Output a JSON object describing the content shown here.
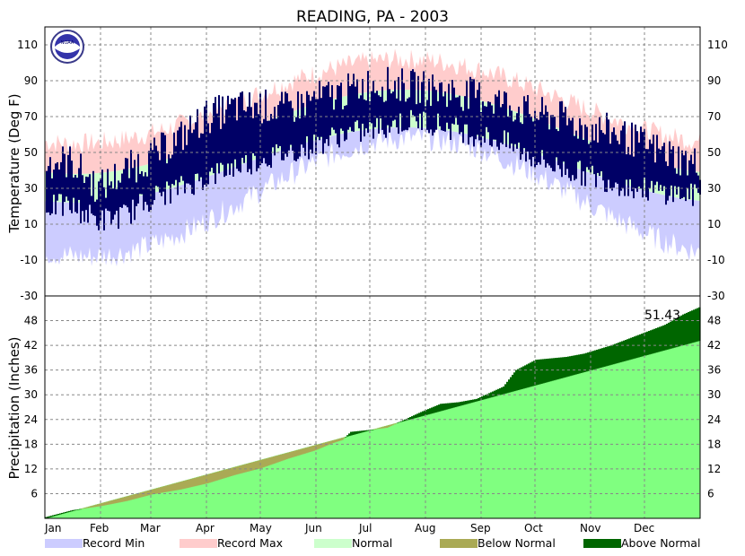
{
  "chart_data": {
    "type": "area",
    "title": "READING, PA - 2003",
    "months": [
      "Jan",
      "Feb",
      "Mar",
      "Apr",
      "May",
      "Jun",
      "Jul",
      "Aug",
      "Sep",
      "Oct",
      "Nov",
      "Dec"
    ],
    "temperature": {
      "ylabel": "Temperature (Deg F)",
      "ylim": [
        -30,
        120
      ],
      "ticks": [
        -30,
        -10,
        10,
        30,
        50,
        70,
        90,
        110
      ],
      "grid": true,
      "record_max": {
        "min": 55,
        "max": 102,
        "peak_day": 200
      },
      "record_min": {
        "min": -8,
        "max": 58,
        "low_day": 25,
        "peak_day": 205
      },
      "normal_high": {
        "min": 38,
        "max": 85
      },
      "normal_low": {
        "min": 22,
        "max": 64
      },
      "observed_highs": [
        [
          15,
          45
        ],
        [
          30,
          30
        ],
        [
          45,
          40
        ],
        [
          60,
          48
        ],
        [
          75,
          58
        ],
        [
          90,
          70
        ],
        [
          105,
          75
        ],
        [
          120,
          76
        ],
        [
          135,
          74
        ],
        [
          150,
          80
        ],
        [
          165,
          83
        ],
        [
          180,
          88
        ],
        [
          195,
          88
        ],
        [
          210,
          86
        ],
        [
          225,
          84
        ],
        [
          240,
          82
        ],
        [
          255,
          78
        ],
        [
          270,
          72
        ],
        [
          285,
          70
        ],
        [
          300,
          64
        ],
        [
          315,
          62
        ],
        [
          330,
          56
        ],
        [
          345,
          50
        ],
        [
          360,
          44
        ]
      ],
      "observed_lows": [
        [
          15,
          20
        ],
        [
          30,
          12
        ],
        [
          45,
          15
        ],
        [
          60,
          25
        ],
        [
          75,
          30
        ],
        [
          90,
          36
        ],
        [
          105,
          42
        ],
        [
          120,
          46
        ],
        [
          135,
          50
        ],
        [
          150,
          54
        ],
        [
          165,
          60
        ],
        [
          180,
          62
        ],
        [
          195,
          66
        ],
        [
          210,
          68
        ],
        [
          225,
          64
        ],
        [
          240,
          60
        ],
        [
          255,
          56
        ],
        [
          270,
          48
        ],
        [
          285,
          42
        ],
        [
          300,
          38
        ],
        [
          315,
          34
        ],
        [
          330,
          30
        ],
        [
          345,
          28
        ],
        [
          360,
          26
        ]
      ]
    },
    "precipitation": {
      "ylabel": "Precipitation (Inches)",
      "ylim": [
        0,
        54
      ],
      "ticks": [
        6,
        12,
        18,
        24,
        30,
        36,
        42,
        48
      ],
      "grid": true,
      "annual_total_label": "51.43",
      "normal_total": 43.2,
      "observed_cumulative": [
        [
          0,
          0.3
        ],
        [
          15,
          2.0
        ],
        [
          31,
          3.0
        ],
        [
          45,
          4.2
        ],
        [
          59,
          5.8
        ],
        [
          75,
          7.0
        ],
        [
          90,
          8.5
        ],
        [
          105,
          10.5
        ],
        [
          120,
          12.2
        ],
        [
          135,
          14.5
        ],
        [
          150,
          16.5
        ],
        [
          160,
          18.3
        ],
        [
          165,
          19.0
        ],
        [
          170,
          21.0
        ],
        [
          181,
          21.5
        ],
        [
          190,
          22.0
        ],
        [
          200,
          24.0
        ],
        [
          210,
          26.0
        ],
        [
          220,
          27.8
        ],
        [
          230,
          28.2
        ],
        [
          240,
          29.0
        ],
        [
          245,
          30.0
        ],
        [
          255,
          32.0
        ],
        [
          262,
          36.0
        ],
        [
          273,
          38.5
        ],
        [
          290,
          39.2
        ],
        [
          300,
          40.0
        ],
        [
          315,
          42.0
        ],
        [
          330,
          44.5
        ],
        [
          345,
          47.0
        ],
        [
          355,
          49.5
        ],
        [
          365,
          51.43
        ]
      ]
    },
    "legend": [
      {
        "label": "Record Min",
        "color": "#ccccff"
      },
      {
        "label": "Record Max",
        "color": "#ffcccc"
      },
      {
        "label": "Normal",
        "color": "#ccffcc"
      },
      {
        "label": "Below Normal",
        "color": "#aaaa55"
      },
      {
        "label": "Above Normal",
        "color": "#006600"
      }
    ],
    "colors": {
      "observed_temp": "#000066",
      "normal_precip": "#80ff80",
      "grid": "#888888"
    }
  },
  "logo": {
    "text": "NOAA"
  }
}
